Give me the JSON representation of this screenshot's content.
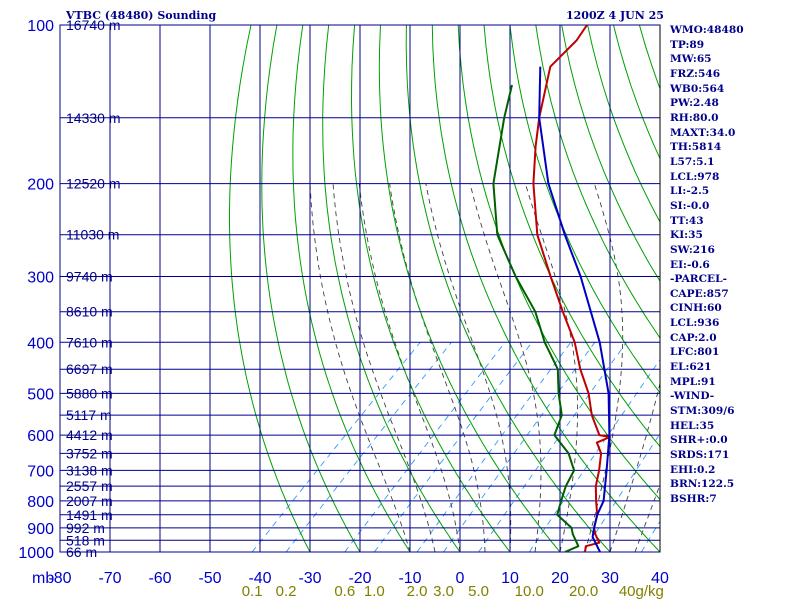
{
  "header": {
    "title": "VTBC (48480) Sounding",
    "time": "1200Z  4 JUN 25"
  },
  "indices": [
    "WMO:48480",
    "TP:89",
    "MW:65",
    "FRZ:546",
    "WB0:564",
    "PW:2.48",
    "RH:80.0",
    "MAXT:34.0",
    "TH:5814",
    "L57:5.1",
    "LCL:978",
    "LI:-2.5",
    "SI:-0.0",
    "TT:43",
    "KI:35",
    "SW:216",
    "EI:-0.6",
    "-PARCEL-",
    "CAPE:857",
    "CINH:60",
    "LCL:936",
    "CAP:2.0",
    "LFC:801",
    "EL:621",
    "MPL:91",
    "-WIND-",
    "STM:309/6",
    "HEL:35",
    "SHR+:0.0",
    "SRDS:171",
    "EHI:0.2",
    "BRN:122.5",
    "BSHR:7"
  ],
  "colors": {
    "grid": "#00008b",
    "dry_adiabat": "#00a000",
    "moist_adiabat": "#404040",
    "mixing_ratio": "#3399ff",
    "temperature": "#c00000",
    "dewpoint": "#006000",
    "parcel": "#0000c0",
    "axis_text": "#0000cc",
    "mixing_text": "#808000",
    "wind": "#000000"
  },
  "chart_data": {
    "type": "line",
    "title": "VTBC (48480) Sounding",
    "subtitle": "1200Z  4 JUN 25",
    "xlabel": "",
    "ylabel": "mb",
    "x_unit": "°C (skewed)",
    "xlim": [
      -80,
      40
    ],
    "y_scale": "log",
    "ylim": [
      1000,
      100
    ],
    "x_ticks": [
      -80,
      -70,
      -60,
      -50,
      -40,
      -30,
      -20,
      -10,
      0,
      10,
      20,
      30,
      40
    ],
    "pressure_ticks": [
      100,
      200,
      300,
      400,
      500,
      600,
      700,
      800,
      900,
      1000
    ],
    "grid": true,
    "height_labels": [
      {
        "p": 1000,
        "label": "66 m"
      },
      {
        "p": 950,
        "label": "518 m"
      },
      {
        "p": 900,
        "label": "992 m"
      },
      {
        "p": 850,
        "label": "1491 m"
      },
      {
        "p": 800,
        "label": "2007 m"
      },
      {
        "p": 750,
        "label": "2557 m"
      },
      {
        "p": 700,
        "label": "3138 m"
      },
      {
        "p": 650,
        "label": "3752 m"
      },
      {
        "p": 600,
        "label": "4412 m"
      },
      {
        "p": 550,
        "label": "5117 m"
      },
      {
        "p": 500,
        "label": "5880 m"
      },
      {
        "p": 450,
        "label": "6697 m"
      },
      {
        "p": 400,
        "label": "7610 m"
      },
      {
        "p": 350,
        "label": "8610 m"
      },
      {
        "p": 300,
        "label": "9740 m"
      },
      {
        "p": 250,
        "label": "11030 m"
      },
      {
        "p": 200,
        "label": "12520 m"
      },
      {
        "p": 150,
        "label": "14330 m"
      },
      {
        "p": 100,
        "label": "16740 m"
      }
    ],
    "mixing_ratio_labels": [
      {
        "w": 0.1,
        "label": "0.1"
      },
      {
        "w": 0.2,
        "label": "0.2"
      },
      {
        "w": 0.6,
        "label": "0.6"
      },
      {
        "w": 1.0,
        "label": "1.0"
      },
      {
        "w": 2.0,
        "label": "2.0"
      },
      {
        "w": 3.0,
        "label": "3.0"
      },
      {
        "w": 5.0,
        "label": "5.0"
      },
      {
        "w": 10.0,
        "label": "10.0"
      },
      {
        "w": 20.0,
        "label": "20.0"
      },
      {
        "w": 40.0,
        "label": "40g/kg"
      }
    ],
    "dry_adiabats_C": [
      -30,
      -20,
      -10,
      0,
      10,
      20,
      30,
      40,
      50,
      60,
      70,
      80,
      90,
      100,
      110,
      120,
      130,
      140,
      150,
      160,
      170
    ],
    "moist_adiabats_C": [
      -10,
      -5,
      0,
      5,
      10,
      15,
      20,
      25,
      30,
      35
    ],
    "series": [
      {
        "role": "temperature",
        "points": [
          [
            1000,
            25
          ],
          [
            975,
            24
          ],
          [
            960,
            26
          ],
          [
            925,
            23.5
          ],
          [
            900,
            22
          ],
          [
            850,
            20
          ],
          [
            800,
            17
          ],
          [
            750,
            14
          ],
          [
            700,
            11.5
          ],
          [
            650,
            8.5
          ],
          [
            620,
            5.5
          ],
          [
            605,
            7
          ],
          [
            600,
            4.5
          ],
          [
            550,
            -1
          ],
          [
            500,
            -6
          ],
          [
            450,
            -12.5
          ],
          [
            400,
            -19
          ],
          [
            350,
            -27.5
          ],
          [
            300,
            -37
          ],
          [
            250,
            -48
          ],
          [
            200,
            -59
          ],
          [
            170,
            -66
          ],
          [
            150,
            -71
          ],
          [
            120,
            -79
          ],
          [
            107,
            -79
          ],
          [
            100,
            -80
          ]
        ]
      },
      {
        "role": "dewpoint",
        "points": [
          [
            1000,
            21
          ],
          [
            975,
            22.5
          ],
          [
            960,
            21.5
          ],
          [
            925,
            19
          ],
          [
            900,
            17.5
          ],
          [
            850,
            12
          ],
          [
            800,
            10
          ],
          [
            750,
            8
          ],
          [
            700,
            6.5
          ],
          [
            650,
            2
          ],
          [
            600,
            -4.5
          ],
          [
            550,
            -7
          ],
          [
            500,
            -12
          ],
          [
            450,
            -17
          ],
          [
            400,
            -25
          ],
          [
            350,
            -33
          ],
          [
            300,
            -44
          ],
          [
            250,
            -56
          ],
          [
            200,
            -67
          ],
          [
            150,
            -78
          ],
          [
            130,
            -83
          ]
        ]
      },
      {
        "role": "parcel",
        "points": [
          [
            1000,
            28
          ],
          [
            936,
            23.5
          ],
          [
            900,
            22
          ],
          [
            850,
            20
          ],
          [
            800,
            18.5
          ],
          [
            700,
            13
          ],
          [
            600,
            6.5
          ],
          [
            500,
            -2
          ],
          [
            400,
            -14
          ],
          [
            300,
            -31
          ],
          [
            250,
            -42.5
          ],
          [
            200,
            -56
          ],
          [
            150,
            -71
          ],
          [
            120,
            -81
          ]
        ]
      }
    ]
  }
}
